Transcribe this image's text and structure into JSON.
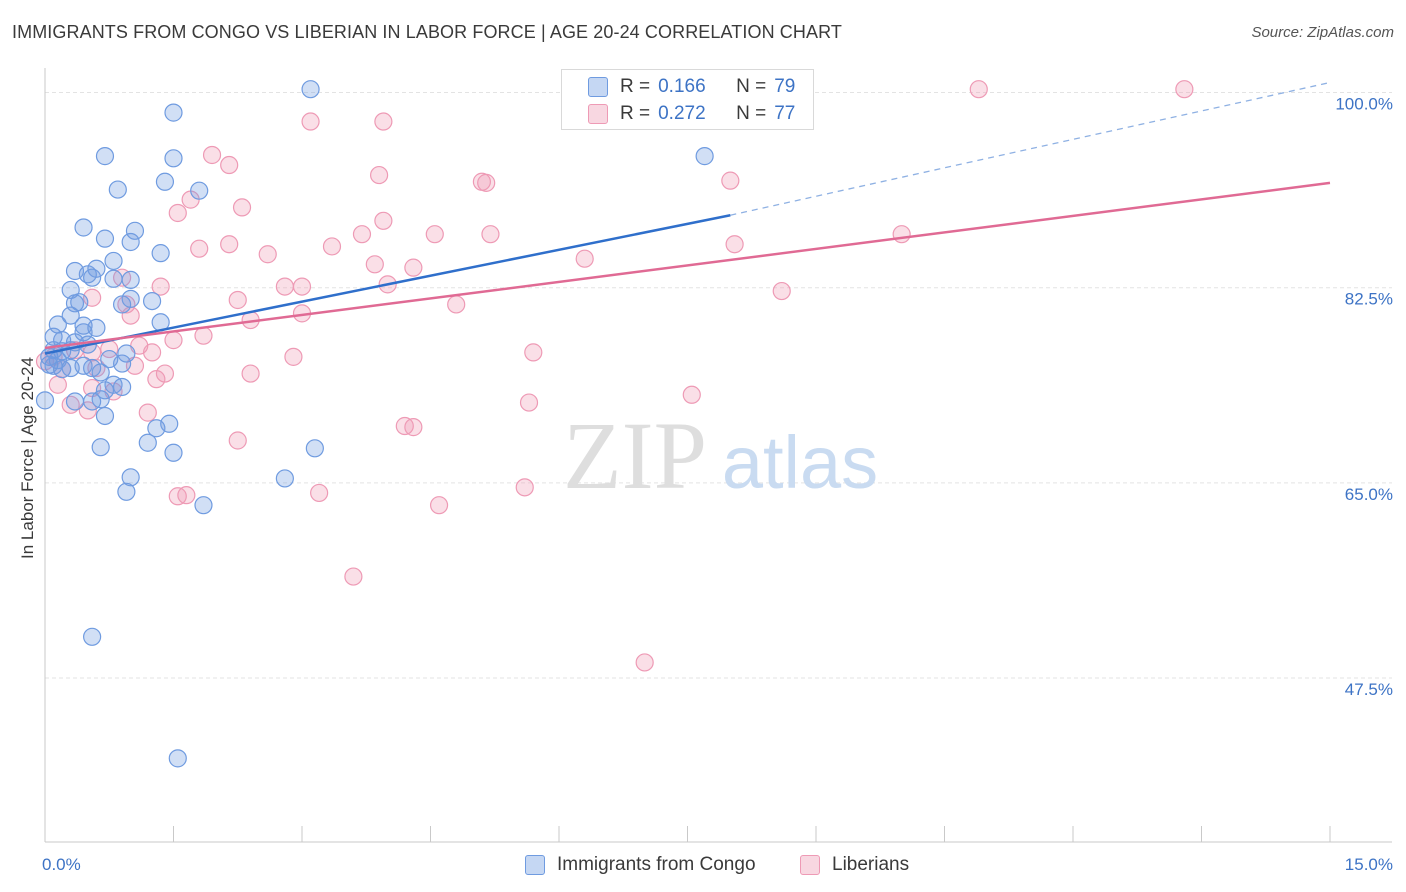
{
  "title": "IMMIGRANTS FROM CONGO VS LIBERIAN IN LABOR FORCE | AGE 20-24 CORRELATION CHART",
  "source": "Source: ZipAtlas.com",
  "watermark": {
    "zip": "ZIP",
    "atlas": "atlas"
  },
  "legend_top": [
    {
      "r_label": "R =",
      "r_value": "0.166",
      "n_label": "N =",
      "n_value": "79"
    },
    {
      "r_label": "R =",
      "r_value": "0.272",
      "n_label": "N =",
      "n_value": "77"
    }
  ],
  "chart_data": {
    "type": "scatter",
    "xlabel": "",
    "ylabel": "In Labor Force | Age 20-24",
    "x_tick_labels": [
      "0.0%",
      "15.0%"
    ],
    "y_tick_labels": [
      "100.0%",
      "82.5%",
      "65.0%",
      "47.5%"
    ],
    "xlim": [
      0,
      15
    ],
    "ylim": [
      32.8,
      102.2
    ],
    "y_ticks": [
      100,
      82.5,
      65,
      47.5
    ],
    "grid": true,
    "legend_position": "bottom",
    "colors": {
      "congo": "#6f9be0",
      "liberian": "#ee9ab5",
      "congo_line": "#2f6fcb",
      "liberian_line": "#e06a94"
    },
    "series": [
      {
        "name": "Immigrants from Congo",
        "r": 0.166,
        "n": 79,
        "trend": {
          "x0": 0.0,
          "y0": 76.6,
          "x1": 8.0,
          "y1": 89.0,
          "x_dashed_end": 15.0,
          "y_dashed_end": 100.9
        },
        "points": [
          [
            3.1,
            100.3
          ],
          [
            1.5,
            98.2
          ],
          [
            0.7,
            94.3
          ],
          [
            1.5,
            94.1
          ],
          [
            1.4,
            92.0
          ],
          [
            0.85,
            91.3
          ],
          [
            1.8,
            91.2
          ],
          [
            0.45,
            87.9
          ],
          [
            1.05,
            87.6
          ],
          [
            0.7,
            86.9
          ],
          [
            1.0,
            86.6
          ],
          [
            0.8,
            84.9
          ],
          [
            1.35,
            85.6
          ],
          [
            0.35,
            84.0
          ],
          [
            0.6,
            84.2
          ],
          [
            0.5,
            83.7
          ],
          [
            0.55,
            83.4
          ],
          [
            0.8,
            83.3
          ],
          [
            1.0,
            83.2
          ],
          [
            0.3,
            82.3
          ],
          [
            1.25,
            81.3
          ],
          [
            1.0,
            81.5
          ],
          [
            0.35,
            81.1
          ],
          [
            0.4,
            81.2
          ],
          [
            0.9,
            81.0
          ],
          [
            0.3,
            80.0
          ],
          [
            0.15,
            79.2
          ],
          [
            0.45,
            79.1
          ],
          [
            1.35,
            79.4
          ],
          [
            0.6,
            78.9
          ],
          [
            0.45,
            78.5
          ],
          [
            0.1,
            78.1
          ],
          [
            0.2,
            77.8
          ],
          [
            0.35,
            77.6
          ],
          [
            0.5,
            77.4
          ],
          [
            0.1,
            76.9
          ],
          [
            0.2,
            76.8
          ],
          [
            0.3,
            76.9
          ],
          [
            0.05,
            76.3
          ],
          [
            0.15,
            76.0
          ],
          [
            0.75,
            76.1
          ],
          [
            0.95,
            76.6
          ],
          [
            0.05,
            75.6
          ],
          [
            0.1,
            75.5
          ],
          [
            0.2,
            75.2
          ],
          [
            0.3,
            75.3
          ],
          [
            0.45,
            75.5
          ],
          [
            0.55,
            75.3
          ],
          [
            0.9,
            75.7
          ],
          [
            0.65,
            74.9
          ],
          [
            0.8,
            73.8
          ],
          [
            0.9,
            73.6
          ],
          [
            0.7,
            73.3
          ],
          [
            0.65,
            72.5
          ],
          [
            0.35,
            72.3
          ],
          [
            0.55,
            72.3
          ],
          [
            0.0,
            72.4
          ],
          [
            0.7,
            71.0
          ],
          [
            1.45,
            70.3
          ],
          [
            1.3,
            69.9
          ],
          [
            1.2,
            68.6
          ],
          [
            0.65,
            68.2
          ],
          [
            1.5,
            67.7
          ],
          [
            3.15,
            68.1
          ],
          [
            1.0,
            65.5
          ],
          [
            2.8,
            65.4
          ],
          [
            0.95,
            64.2
          ],
          [
            1.85,
            63.0
          ],
          [
            0.55,
            51.2
          ],
          [
            1.55,
            40.3
          ],
          [
            7.7,
            94.3
          ]
        ]
      },
      {
        "name": "Liberians",
        "r": 0.272,
        "n": 77,
        "trend": {
          "x0": 0.0,
          "y0": 77.1,
          "x1": 15.0,
          "y1": 91.9
        },
        "points": [
          [
            10.9,
            100.3
          ],
          [
            13.3,
            100.3
          ],
          [
            3.1,
            97.4
          ],
          [
            3.95,
            97.4
          ],
          [
            1.95,
            94.4
          ],
          [
            2.15,
            93.5
          ],
          [
            3.9,
            92.6
          ],
          [
            5.1,
            92.0
          ],
          [
            5.15,
            91.9
          ],
          [
            8.0,
            92.1
          ],
          [
            1.7,
            90.4
          ],
          [
            2.3,
            89.7
          ],
          [
            1.55,
            89.2
          ],
          [
            3.95,
            88.5
          ],
          [
            3.7,
            87.3
          ],
          [
            4.55,
            87.3
          ],
          [
            5.2,
            87.3
          ],
          [
            10.0,
            87.3
          ],
          [
            2.15,
            86.4
          ],
          [
            3.35,
            86.2
          ],
          [
            1.8,
            86.0
          ],
          [
            8.05,
            86.4
          ],
          [
            2.6,
            85.5
          ],
          [
            6.3,
            85.1
          ],
          [
            3.85,
            84.6
          ],
          [
            4.3,
            84.3
          ],
          [
            0.9,
            83.4
          ],
          [
            1.35,
            82.6
          ],
          [
            2.8,
            82.6
          ],
          [
            3.0,
            82.6
          ],
          [
            4.0,
            82.8
          ],
          [
            8.6,
            82.2
          ],
          [
            2.25,
            81.4
          ],
          [
            0.55,
            81.6
          ],
          [
            0.95,
            81.0
          ],
          [
            4.8,
            81.0
          ],
          [
            3.0,
            80.2
          ],
          [
            1.0,
            80.0
          ],
          [
            2.4,
            79.6
          ],
          [
            1.85,
            78.2
          ],
          [
            1.5,
            77.8
          ],
          [
            1.1,
            77.3
          ],
          [
            0.75,
            77.0
          ],
          [
            0.35,
            76.9
          ],
          [
            0.55,
            76.7
          ],
          [
            1.25,
            76.7
          ],
          [
            5.7,
            76.7
          ],
          [
            0.1,
            76.3
          ],
          [
            2.9,
            76.3
          ],
          [
            0.0,
            75.9
          ],
          [
            1.05,
            75.5
          ],
          [
            0.2,
            75.2
          ],
          [
            0.6,
            75.3
          ],
          [
            1.4,
            74.8
          ],
          [
            2.4,
            74.8
          ],
          [
            1.3,
            74.3
          ],
          [
            0.15,
            73.8
          ],
          [
            0.55,
            73.5
          ],
          [
            0.8,
            73.2
          ],
          [
            7.55,
            72.9
          ],
          [
            0.3,
            72.0
          ],
          [
            5.65,
            72.2
          ],
          [
            0.5,
            71.5
          ],
          [
            1.2,
            71.3
          ],
          [
            4.2,
            70.1
          ],
          [
            4.3,
            70.0
          ],
          [
            2.25,
            68.8
          ],
          [
            5.6,
            64.6
          ],
          [
            3.2,
            64.1
          ],
          [
            1.55,
            63.8
          ],
          [
            1.65,
            63.9
          ],
          [
            4.6,
            63.0
          ],
          [
            3.6,
            56.6
          ],
          [
            7.0,
            48.9
          ]
        ]
      }
    ]
  }
}
